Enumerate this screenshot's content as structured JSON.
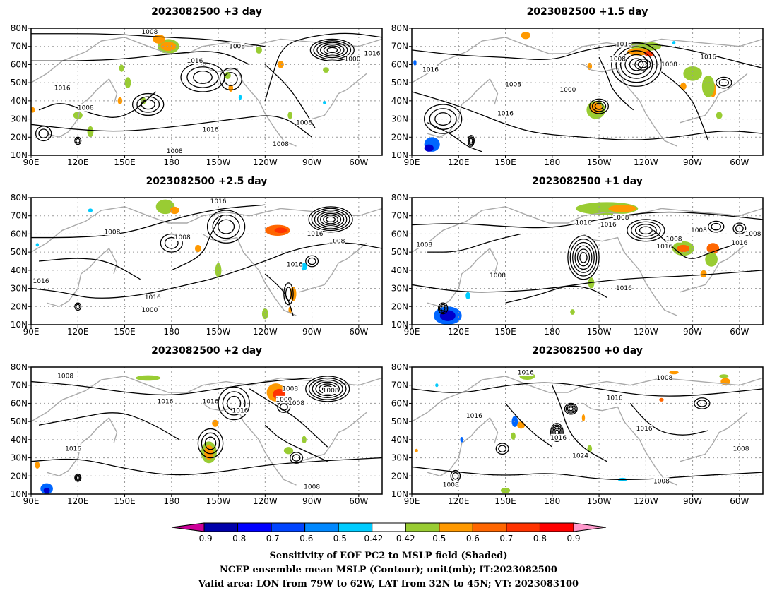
{
  "panels": [
    {
      "title": "2023082500  +3 day",
      "contour_labels": [
        "1008",
        "1008",
        "1016",
        "1016",
        "1008",
        "1016",
        "1000",
        "1016",
        "1008",
        "1008",
        "1008"
      ],
      "blobs": [
        {
          "lon": 178,
          "lat": 70,
          "rx": 7,
          "ry": 4,
          "c": "#99cc33"
        },
        {
          "lon": 178,
          "lat": 70,
          "rx": 5,
          "ry": 2.5,
          "c": "#ff9900"
        },
        {
          "lon": 172,
          "lat": 74,
          "rx": 4,
          "ry": 2.5,
          "c": "#ff9900"
        },
        {
          "lon": 152,
          "lat": 50,
          "rx": 2,
          "ry": 3,
          "c": "#99cc33"
        },
        {
          "lon": 162,
          "lat": 40,
          "rx": 1.5,
          "ry": 2,
          "c": "#99cc33"
        },
        {
          "lon": 147,
          "lat": 40,
          "rx": 1.5,
          "ry": 2,
          "c": "#ff9900"
        },
        {
          "lon": 148,
          "lat": 58,
          "rx": 1.5,
          "ry": 2,
          "c": "#99cc33"
        },
        {
          "lon": 120,
          "lat": 32,
          "rx": 3,
          "ry": 2,
          "c": "#99cc33"
        },
        {
          "lon": 128,
          "lat": 23,
          "rx": 2,
          "ry": 3,
          "c": "#99cc33"
        },
        {
          "lon": 236,
          "lat": 68,
          "rx": 2,
          "ry": 2,
          "c": "#99cc33"
        },
        {
          "lon": 250,
          "lat": 60,
          "rx": 2,
          "ry": 2,
          "c": "#ff9900"
        },
        {
          "lon": 279,
          "lat": 57,
          "rx": 2,
          "ry": 1.5,
          "c": "#99cc33"
        },
        {
          "lon": 216,
          "lat": 54,
          "rx": 2,
          "ry": 2,
          "c": "#99cc33"
        },
        {
          "lon": 218,
          "lat": 47,
          "rx": 1.5,
          "ry": 2,
          "c": "#ff9900"
        },
        {
          "lon": 256,
          "lat": 32,
          "rx": 1.5,
          "ry": 2,
          "c": "#99cc33"
        },
        {
          "lon": 91,
          "lat": 35,
          "rx": 1.5,
          "ry": 1.5,
          "c": "#ff9900"
        },
        {
          "lon": 224,
          "lat": 42,
          "rx": 1,
          "ry": 1.5,
          "c": "#00ccff"
        },
        {
          "lon": 278,
          "lat": 39,
          "rx": 1,
          "ry": 1,
          "c": "#00ccff"
        }
      ]
    },
    {
      "title": "2023082500  +1.5 day",
      "contour_labels": [
        "1016",
        "1008",
        "1016",
        "1008",
        "1000",
        "1016",
        "1008",
        "1016"
      ],
      "blobs": [
        {
          "lon": 240,
          "lat": 70,
          "rx": 10,
          "ry": 2.5,
          "c": "#99cc33"
        },
        {
          "lon": 235,
          "lat": 67,
          "rx": 7,
          "ry": 2,
          "c": "#ff9900"
        },
        {
          "lon": 242,
          "lat": 66,
          "rx": 3,
          "ry": 1.5,
          "c": "#ff3300"
        },
        {
          "lon": 208,
          "lat": 35,
          "rx": 6,
          "ry": 5,
          "c": "#99cc33"
        },
        {
          "lon": 208,
          "lat": 36,
          "rx": 4,
          "ry": 3,
          "c": "#ff9900"
        },
        {
          "lon": 270,
          "lat": 55,
          "rx": 6,
          "ry": 4,
          "c": "#99cc33"
        },
        {
          "lon": 283,
          "lat": 46,
          "rx": 2,
          "ry": 4,
          "c": "#ff9900"
        },
        {
          "lon": 264,
          "lat": 48,
          "rx": 2,
          "ry": 2,
          "c": "#ff9900"
        },
        {
          "lon": 287,
          "lat": 32,
          "rx": 2,
          "ry": 2,
          "c": "#99cc33"
        },
        {
          "lon": 280,
          "lat": 48,
          "rx": 4,
          "ry": 6,
          "c": "#99cc33"
        },
        {
          "lon": 163,
          "lat": 76,
          "rx": 3,
          "ry": 2,
          "c": "#ff9900"
        },
        {
          "lon": 204,
          "lat": 59,
          "rx": 1.5,
          "ry": 2,
          "c": "#ff9900"
        },
        {
          "lon": 103,
          "lat": 16,
          "rx": 5,
          "ry": 4,
          "c": "#0066ff"
        },
        {
          "lon": 101,
          "lat": 14,
          "rx": 3,
          "ry": 2,
          "c": "#0000cc"
        },
        {
          "lon": 92,
          "lat": 61,
          "rx": 1,
          "ry": 1.5,
          "c": "#0066ff"
        },
        {
          "lon": 258,
          "lat": 72,
          "rx": 1,
          "ry": 1,
          "c": "#00ccff"
        }
      ]
    },
    {
      "title": "2023082500  +2.5 day",
      "contour_labels": [
        "1016",
        "1008",
        "1008",
        "1016",
        "1016",
        "1000",
        "1016",
        "1008",
        "1016"
      ],
      "blobs": [
        {
          "lon": 176,
          "lat": 75,
          "rx": 6,
          "ry": 4,
          "c": "#99cc33"
        },
        {
          "lon": 182,
          "lat": 73,
          "rx": 3,
          "ry": 2,
          "c": "#ff9900"
        },
        {
          "lon": 248,
          "lat": 62,
          "rx": 8,
          "ry": 3,
          "c": "#ff6600"
        },
        {
          "lon": 250,
          "lat": 62,
          "rx": 4,
          "ry": 1.5,
          "c": "#ff3300"
        },
        {
          "lon": 210,
          "lat": 40,
          "rx": 2,
          "ry": 4,
          "c": "#99cc33"
        },
        {
          "lon": 197,
          "lat": 52,
          "rx": 2,
          "ry": 2,
          "c": "#ff9900"
        },
        {
          "lon": 258,
          "lat": 27,
          "rx": 2,
          "ry": 4,
          "c": "#ff9900"
        },
        {
          "lon": 240,
          "lat": 16,
          "rx": 2,
          "ry": 3,
          "c": "#99cc33"
        },
        {
          "lon": 256,
          "lat": 18,
          "rx": 1,
          "ry": 2,
          "c": "#ff9900"
        },
        {
          "lon": 265,
          "lat": 42,
          "rx": 2,
          "ry": 2,
          "c": "#00ccff"
        },
        {
          "lon": 128,
          "lat": 73,
          "rx": 1.5,
          "ry": 1,
          "c": "#00ccff"
        },
        {
          "lon": 94,
          "lat": 54,
          "rx": 1,
          "ry": 1,
          "c": "#00ccff"
        }
      ]
    },
    {
      "title": "2023082500  +1 day",
      "contour_labels": [
        "1008",
        "1016",
        "1008",
        "1016",
        "1008",
        "1008",
        "1016",
        "1016",
        "1008",
        "1016",
        "1008"
      ],
      "blobs": [
        {
          "lon": 215,
          "lat": 74,
          "rx": 20,
          "ry": 3.5,
          "c": "#99cc33"
        },
        {
          "lon": 225,
          "lat": 74,
          "rx": 9,
          "ry": 2,
          "c": "#ff9900"
        },
        {
          "lon": 264,
          "lat": 52,
          "rx": 7,
          "ry": 4,
          "c": "#99cc33"
        },
        {
          "lon": 264,
          "lat": 52,
          "rx": 4,
          "ry": 2,
          "c": "#ff6600"
        },
        {
          "lon": 283,
          "lat": 52,
          "rx": 4,
          "ry": 3,
          "c": "#ff6600"
        },
        {
          "lon": 282,
          "lat": 46,
          "rx": 4,
          "ry": 4,
          "c": "#99cc33"
        },
        {
          "lon": 205,
          "lat": 33,
          "rx": 2,
          "ry": 3,
          "c": "#99cc33"
        },
        {
          "lon": 277,
          "lat": 38,
          "rx": 2,
          "ry": 2,
          "c": "#ff9900"
        },
        {
          "lon": 113,
          "lat": 15,
          "rx": 9,
          "ry": 5,
          "c": "#0066ff"
        },
        {
          "lon": 113,
          "lat": 15,
          "rx": 5,
          "ry": 3,
          "c": "#0000cc"
        },
        {
          "lon": 126,
          "lat": 26,
          "rx": 1.5,
          "ry": 2,
          "c": "#00ccff"
        },
        {
          "lon": 193,
          "lat": 17,
          "rx": 1.5,
          "ry": 1.5,
          "c": "#99cc33"
        }
      ]
    },
    {
      "title": "2023082500  +2 day",
      "contour_labels": [
        "1008",
        "1016",
        "1008",
        "1016",
        "1016",
        "1000",
        "1008",
        "1008",
        "1016",
        "1008"
      ],
      "blobs": [
        {
          "lon": 247,
          "lat": 66,
          "rx": 6,
          "ry": 5,
          "c": "#ff9900"
        },
        {
          "lon": 249,
          "lat": 65,
          "rx": 4,
          "ry": 3,
          "c": "#ff3300"
        },
        {
          "lon": 204,
          "lat": 33,
          "rx": 5,
          "ry": 6,
          "c": "#99cc33"
        },
        {
          "lon": 204,
          "lat": 33,
          "rx": 3,
          "ry": 4,
          "c": "#ff9900"
        },
        {
          "lon": 208,
          "lat": 49,
          "rx": 2,
          "ry": 2,
          "c": "#ff9900"
        },
        {
          "lon": 255,
          "lat": 34,
          "rx": 3,
          "ry": 2,
          "c": "#99cc33"
        },
        {
          "lon": 100,
          "lat": 13,
          "rx": 4,
          "ry": 3,
          "c": "#0066ff"
        },
        {
          "lon": 100,
          "lat": 12,
          "rx": 2,
          "ry": 1.5,
          "c": "#0000cc"
        },
        {
          "lon": 165,
          "lat": 74,
          "rx": 8,
          "ry": 1.5,
          "c": "#99cc33"
        },
        {
          "lon": 265,
          "lat": 40,
          "rx": 1.5,
          "ry": 2,
          "c": "#99cc33"
        },
        {
          "lon": 94,
          "lat": 26,
          "rx": 1.5,
          "ry": 2,
          "c": "#ff9900"
        }
      ]
    },
    {
      "title": "2023082500  +0 day",
      "contour_labels": [
        "1016",
        "1008",
        "1016",
        "1016",
        "1016",
        "1016",
        "1008",
        "1024",
        "1008",
        "1008"
      ],
      "blobs": [
        {
          "lon": 164,
          "lat": 75,
          "rx": 5,
          "ry": 2,
          "c": "#99cc33"
        },
        {
          "lon": 160,
          "lat": 48,
          "rx": 2.5,
          "ry": 2,
          "c": "#ff9900"
        },
        {
          "lon": 155,
          "lat": 42,
          "rx": 1.5,
          "ry": 2,
          "c": "#99cc33"
        },
        {
          "lon": 200,
          "lat": 52,
          "rx": 1,
          "ry": 2,
          "c": "#ff9900"
        },
        {
          "lon": 291,
          "lat": 72,
          "rx": 3,
          "ry": 2,
          "c": "#ff9900"
        },
        {
          "lon": 290,
          "lat": 75,
          "rx": 3,
          "ry": 1,
          "c": "#99cc33"
        },
        {
          "lon": 258,
          "lat": 77,
          "rx": 3,
          "ry": 1,
          "c": "#ff9900"
        },
        {
          "lon": 250,
          "lat": 62,
          "rx": 1.5,
          "ry": 1,
          "c": "#ff6600"
        },
        {
          "lon": 156,
          "lat": 50,
          "rx": 2,
          "ry": 3,
          "c": "#0066ff"
        },
        {
          "lon": 122,
          "lat": 40,
          "rx": 1,
          "ry": 1.5,
          "c": "#0066ff"
        },
        {
          "lon": 150,
          "lat": 12,
          "rx": 3,
          "ry": 1.5,
          "c": "#99cc33"
        },
        {
          "lon": 225,
          "lat": 18,
          "rx": 3,
          "ry": 1,
          "c": "#00ccff"
        },
        {
          "lon": 106,
          "lat": 70,
          "rx": 1,
          "ry": 1,
          "c": "#00ccff"
        },
        {
          "lon": 204,
          "lat": 35,
          "rx": 1.5,
          "ry": 2,
          "c": "#99cc33"
        },
        {
          "lon": 93,
          "lat": 34,
          "rx": 1,
          "ry": 1,
          "c": "#ff9900"
        }
      ]
    }
  ],
  "map": {
    "lon_ticks": [
      90,
      120,
      150,
      180,
      210,
      240,
      270,
      300
    ],
    "lon_labels": [
      "90E",
      "120E",
      "150E",
      "180",
      "150W",
      "120W",
      "90W",
      "60W"
    ],
    "lat_ticks": [
      10,
      20,
      30,
      40,
      50,
      60,
      70,
      80
    ],
    "lat_labels": [
      "10N",
      "20N",
      "30N",
      "40N",
      "50N",
      "60N",
      "70N",
      "80N"
    ],
    "lon_range": [
      90,
      315
    ],
    "lat_range": [
      10,
      80
    ]
  },
  "colorbar": {
    "colors": [
      "#cc0099",
      "#0000aa",
      "#0000ff",
      "#0044ff",
      "#0088ff",
      "#00ccff",
      "#ffffff",
      "#99cc33",
      "#ff9900",
      "#ff6600",
      "#ff3300",
      "#ff0000",
      "#ff99cc"
    ],
    "labels": [
      "-0.9",
      "-0.8",
      "-0.7",
      "-0.6",
      "-0.5",
      "-0.42",
      "0.42",
      "0.5",
      "0.6",
      "0.7",
      "0.8",
      "0.9"
    ]
  },
  "footer": [
    "Sensitivity of EOF PC2 to MSLP field (Shaded)",
    "NCEP ensemble mean MSLP (Contour); unit(mb); IT:2023082500",
    "Valid area: LON from 79W to 62W, LAT from 32N to 45N; VT: 2023083100"
  ]
}
